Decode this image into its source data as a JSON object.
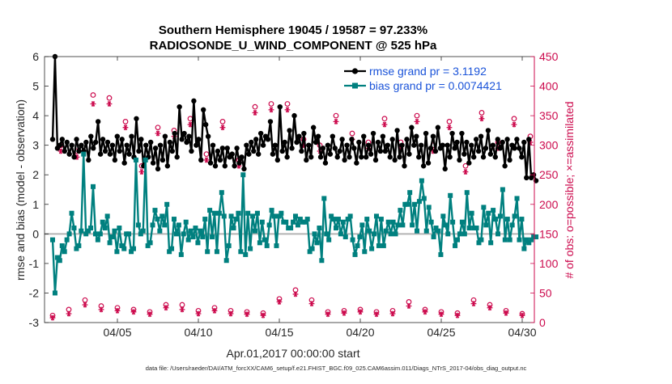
{
  "chart_data": {
    "type": "line",
    "title_line1": "Southern Hemisphere 19045 / 19587 = 97.233%",
    "title_line2": "RADIOSONDE_U_WIND_COMPONENT @ 525 hPa",
    "xlabel": "Apr.01,2017 00:00:00 start",
    "ylabel_left": "rmse and bias (model - observation)",
    "ylabel_right": "# of obs: o=possible; ×=assimilated",
    "footer": "data file: /Users/raeder/DAI/ATM_forcXX/CAM6_setup/f.e21.FHIST_BGC.f09_025.CAM6assim.011/Diags_NTrS_2017-04/obs_diag_output.nc",
    "xlim": [
      0.5,
      30.75
    ],
    "ylim_left": [
      -3,
      6
    ],
    "ylim_right": [
      0,
      450
    ],
    "x_ticks": [
      5,
      10,
      15,
      20,
      25,
      30
    ],
    "x_tick_labels": [
      "04/05",
      "04/10",
      "04/15",
      "04/20",
      "04/25",
      "04/30"
    ],
    "y_left_ticks": [
      -3,
      -2,
      -1,
      0,
      1,
      2,
      3,
      4,
      5,
      6
    ],
    "y_left_tick_labels": [
      "-3",
      "-2",
      "-1",
      "0",
      "1",
      "2",
      "3",
      "4",
      "5",
      "6"
    ],
    "y_right_ticks": [
      0,
      50,
      100,
      150,
      200,
      250,
      300,
      350,
      400,
      450
    ],
    "y_right_tick_labels": [
      "0",
      "50",
      "100",
      "150",
      "200",
      "250",
      "300",
      "350",
      "400",
      "450"
    ],
    "legend": [
      {
        "label": "rmse grand pr = 3.1192",
        "color": "#000000"
      },
      {
        "label": "bias grand pr = 0.0074421",
        "color": "#00807f"
      }
    ],
    "legend_position": "top-right",
    "zero_line_color": "#b3b3b3",
    "series": [
      {
        "name": "rmse",
        "axis": "left",
        "color": "#000000",
        "values": [
          3.2,
          6.0,
          2.9,
          3.0,
          3.2,
          2.8,
          3.1,
          2.7,
          3.0,
          2.6,
          3.2,
          2.8,
          3.0,
          2.8,
          3.1,
          2.5,
          3.3,
          2.9,
          3.1,
          3.8,
          2.7,
          3.2,
          2.8,
          3.1,
          2.7,
          3.0,
          2.5,
          3.3,
          2.8,
          3.2,
          2.4,
          3.0,
          2.7,
          3.3,
          2.6,
          3.9,
          2.8,
          3.2,
          2.3,
          3.0,
          2.6,
          3.1,
          2.4,
          2.9,
          2.2,
          3.0,
          2.5,
          3.3,
          2.3,
          3.1,
          2.8,
          3.4,
          2.6,
          4.3,
          3.2,
          3.4,
          3.1,
          3.3,
          2.8,
          4.5,
          3.0,
          3.2,
          2.5,
          4.2,
          3.7,
          3.3,
          2.4,
          3.0,
          2.3,
          2.8,
          2.5,
          2.9,
          2.3,
          2.9,
          2.6,
          2.7,
          2.3,
          2.9,
          2.4,
          2.6,
          2.2,
          3.0,
          2.7,
          3.1,
          2.8,
          3.2,
          2.7,
          3.4,
          3.0,
          3.3,
          3.2,
          3.8,
          2.7,
          3.0,
          2.5,
          4.3,
          2.8,
          3.1,
          2.6,
          3.5,
          2.9,
          4.0,
          3.1,
          3.3,
          2.8,
          3.4,
          2.5,
          3.0,
          2.6,
          3.6,
          3.1,
          3.3,
          2.6,
          2.9,
          2.4,
          3.0,
          2.7,
          3.3,
          2.9,
          2.6,
          2.8,
          3.2,
          2.5,
          3.0,
          2.6,
          3.2,
          2.9,
          2.4,
          3.1,
          2.6,
          3.3,
          2.6,
          3.0,
          2.7,
          3.4,
          2.5,
          3.1,
          2.8,
          3.3,
          2.8,
          3.0,
          2.6,
          3.2,
          2.5,
          3.5,
          2.6,
          3.0,
          2.3,
          3.2,
          2.7,
          3.6,
          3.0,
          3.3,
          2.6,
          3.0,
          2.3,
          3.4,
          2.4,
          2.9,
          3.3,
          2.8,
          3.6,
          2.9,
          3.0,
          2.2,
          3.0,
          2.6,
          3.4,
          2.9,
          3.1,
          2.5,
          3.4,
          2.7,
          3.1,
          2.4,
          3.0,
          2.6,
          3.2,
          2.8,
          3.3,
          2.6,
          2.9,
          3.5,
          2.7,
          3.0,
          2.6,
          3.2,
          2.9,
          3.1,
          2.3,
          3.2,
          2.5,
          3.0,
          2.9,
          3.2,
          2.9,
          2.6,
          3.1,
          1.9,
          3.2,
          1.9,
          2.0,
          1.8
        ]
      },
      {
        "name": "bias",
        "axis": "left",
        "color": "#00807f",
        "values": [
          -0.2,
          -2.0,
          -0.8,
          -0.9,
          -0.4,
          -0.6,
          -0.2,
          0.0,
          0.7,
          0.2,
          -0.5,
          -0.4,
          0.1,
          2.7,
          0.0,
          0.1,
          0.2,
          1.6,
          0.0,
          -0.2,
          0.0,
          0.4,
          0.2,
          0.6,
          -0.3,
          -0.1,
          0.1,
          -0.6,
          0.2,
          -0.4,
          -0.5,
          0.0,
          0.0,
          -0.6,
          -0.5,
          2.5,
          0.3,
          0.0,
          0.1,
          2.5,
          -0.4,
          -0.3,
          0.3,
          0.8,
          0.5,
          0.1,
          0.6,
          0.3,
          1.0,
          -0.6,
          -0.5,
          0.5,
          0.0,
          0.3,
          -0.7,
          0.0,
          0.4,
          -0.2,
          0.1,
          -0.1,
          0.2,
          -0.3,
          0.1,
          -0.1,
          0.5,
          -0.6,
          0.8,
          -0.1,
          0.7,
          -0.6,
          0.7,
          1.4,
          0.6,
          -0.9,
          -0.4,
          0.6,
          0.2,
          0.5,
          0.7,
          -0.6,
          2.0,
          -0.7,
          0.7,
          -0.5,
          0.6,
          0.1,
          0.7,
          -0.3,
          0.4,
          -0.2,
          -0.4,
          0.3,
          0.8,
          0.6,
          -0.4,
          0.6,
          0.7,
          0.4,
          0.4,
          0.2,
          0.2,
          0.4,
          0.6,
          0.3,
          0.5,
          0.4,
          0.4,
          0.5,
          -0.6,
          -0.5,
          0.0,
          -0.3,
          0.2,
          -0.9,
          1.2,
          0.0,
          -0.2,
          0.6,
          0.5,
          0.2,
          0.5,
          0.0,
          0.4,
          -0.1,
          0.5,
          0.6,
          -0.2,
          -0.7,
          -0.4,
          -0.1,
          0.3,
          -0.6,
          0.5,
          0.1,
          -0.5,
          0.0,
          0.6,
          -0.4,
          0.5,
          -0.4,
          0.1,
          0.4,
          0.0,
          0.4,
          0.0,
          0.3,
          0.8,
          0.3,
          1.0,
          1.0,
          1.4,
          0.3,
          1.0,
          0.1,
          1.1,
          1.8,
          1.2,
          0.1,
          0.9,
          0.4,
          -0.1,
          0.2,
          0.1,
          -0.7,
          0.6,
          0.3,
          0.0,
          1.3,
          0.4,
          -0.4,
          -0.2,
          0.0,
          0.4,
          0.0,
          1.4,
          0.2,
          0.7,
          0.2,
          0.2,
          -0.3,
          -0.2,
          0.9,
          0.3,
          0.7,
          -0.3,
          0.8,
          0.5,
          0.0,
          0.6,
          1.5,
          -0.2,
          0.5,
          -0.2,
          0.3,
          0.6,
          1.2,
          -0.2,
          0.5,
          -0.5,
          -0.2,
          -0.3,
          -0.2,
          -0.1,
          -0.1
        ]
      },
      {
        "name": "obs possible",
        "axis": "right",
        "color": "#cc0a4d",
        "marker": "o",
        "x": [
          1.0,
          1.5,
          2.0,
          2.5,
          3.0,
          3.5,
          4.0,
          4.5,
          5.0,
          5.5,
          6.0,
          6.5,
          7.0,
          7.5,
          8.0,
          8.5,
          9.0,
          9.5,
          10.0,
          10.5,
          11.0,
          11.5,
          12.0,
          12.5,
          13.0,
          13.5,
          14.0,
          14.5,
          15.0,
          15.5,
          16.0,
          16.5,
          17.0,
          17.5,
          18.0,
          18.5,
          19.0,
          19.5,
          20.0,
          20.5,
          21.0,
          21.5,
          22.0,
          22.5,
          23.0,
          23.5,
          24.0,
          24.5,
          25.0,
          25.5,
          26.0,
          26.5,
          27.0,
          27.5,
          28.0,
          28.5,
          29.0,
          29.5,
          30.0,
          30.5
        ],
        "values": [
          12,
          300,
          22,
          290,
          38,
          385,
          28,
          380,
          25,
          340,
          22,
          265,
          18,
          330,
          30,
          325,
          30,
          345,
          20,
          285,
          25,
          340,
          20,
          275,
          18,
          365,
          16,
          370,
          40,
          370,
          55,
          310,
          38,
          300,
          18,
          350,
          20,
          320,
          22,
          305,
          18,
          345,
          20,
          305,
          35,
          350,
          22,
          300,
          18,
          340,
          16,
          265,
          38,
          355,
          30,
          305,
          20,
          345,
          15,
          315
        ]
      },
      {
        "name": "obs assimilated",
        "axis": "right",
        "color": "#cc0a4d",
        "marker": "x",
        "x": [
          1.0,
          1.5,
          2.0,
          2.5,
          3.0,
          3.5,
          4.0,
          4.5,
          5.0,
          5.5,
          6.0,
          6.5,
          7.0,
          7.5,
          8.0,
          8.5,
          9.0,
          9.5,
          10.0,
          10.5,
          11.0,
          11.5,
          12.0,
          12.5,
          13.0,
          13.5,
          14.0,
          14.5,
          15.0,
          15.5,
          16.0,
          16.5,
          17.0,
          17.5,
          18.0,
          18.5,
          19.0,
          19.5,
          20.0,
          20.5,
          21.0,
          21.5,
          22.0,
          22.5,
          23.0,
          23.5,
          24.0,
          24.5,
          25.0,
          25.5,
          26.0,
          26.5,
          27.0,
          27.5,
          28.0,
          28.5,
          29.0,
          29.5,
          30.0,
          30.5
        ],
        "values": [
          8,
          290,
          15,
          280,
          30,
          370,
          22,
          370,
          20,
          330,
          18,
          255,
          14,
          320,
          25,
          315,
          22,
          335,
          15,
          275,
          20,
          330,
          15,
          265,
          14,
          355,
          12,
          360,
          35,
          360,
          48,
          300,
          32,
          290,
          14,
          340,
          16,
          310,
          18,
          295,
          14,
          335,
          15,
          295,
          28,
          340,
          18,
          290,
          14,
          330,
          12,
          255,
          32,
          345,
          25,
          295,
          16,
          335,
          12,
          305
        ]
      }
    ]
  }
}
